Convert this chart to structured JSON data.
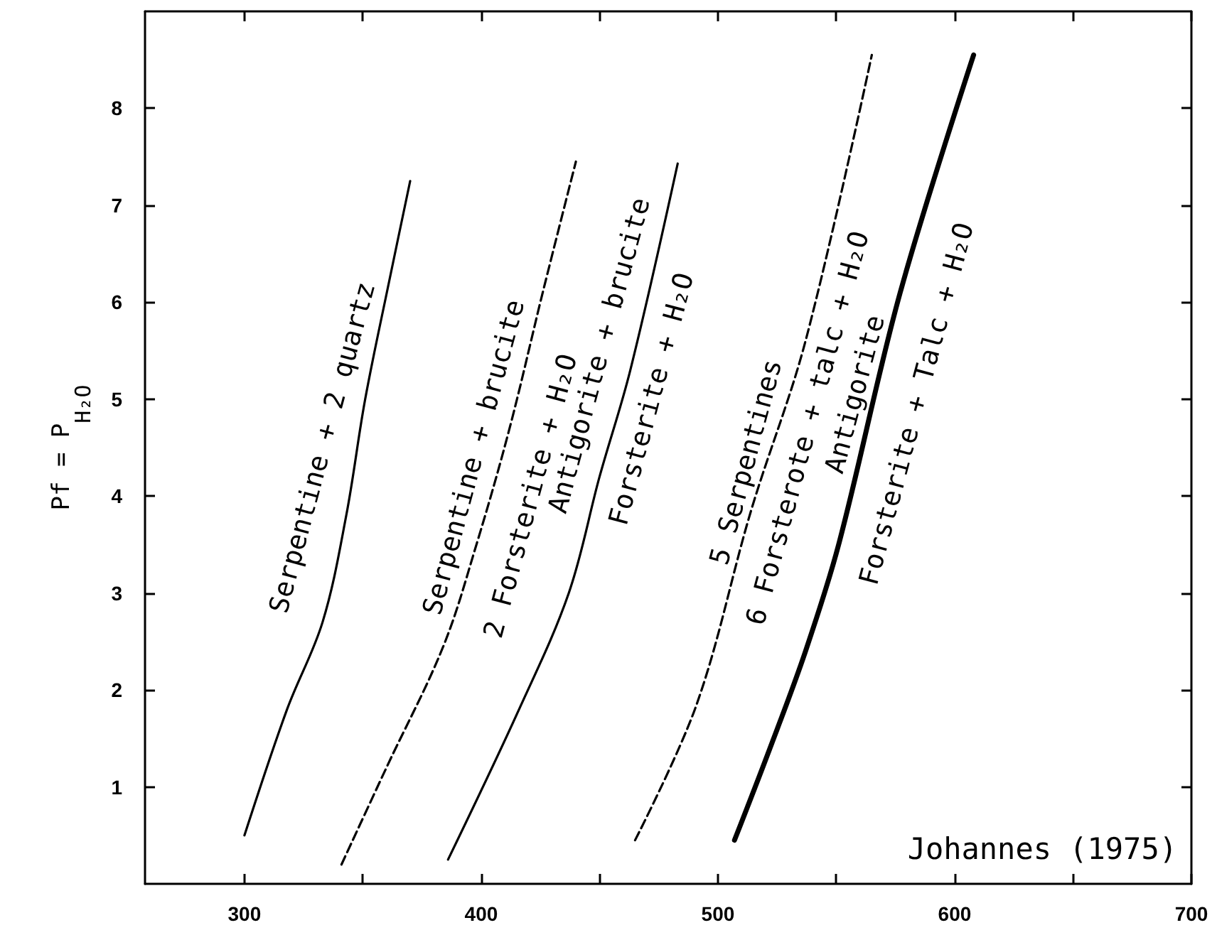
{
  "chart_data": {
    "type": "line",
    "ylabel": "Pf = P$_{H₂O}$",
    "xlim": [
      258,
      700
    ],
    "xticks": [
      300,
      {
        "value": 350,
        "label": null
      },
      400,
      {
        "value": 450,
        "label": null
      },
      500,
      {
        "value": 550,
        "label": null
      },
      600,
      {
        "value": 650,
        "label": null
      },
      700
    ],
    "ylim": [
      0,
      9
    ],
    "yticks": [
      1,
      2,
      3,
      4,
      5,
      6,
      7,
      8
    ],
    "grid": false,
    "marker": "none",
    "series": [
      {
        "color": "#000000",
        "line_style": "solid",
        "x": [
          300,
          318,
          333,
          343,
          351,
          361,
          370
        ],
        "values": [
          0.5,
          1.8,
          2.7,
          3.8,
          5.0,
          6.2,
          7.25
        ]
      },
      {
        "color": "#000000",
        "line_style": "dashed",
        "x": [
          341,
          360,
          384,
          398,
          412,
          426,
          440
        ],
        "values": [
          0.2,
          1.2,
          2.45,
          3.5,
          4.7,
          6.1,
          7.45
        ]
      },
      {
        "color": "#000000",
        "line_style": "solid",
        "x": [
          386,
          416,
          437,
          450,
          463,
          483
        ],
        "values": [
          0.25,
          1.8,
          3.0,
          4.2,
          5.3,
          7.43
        ]
      },
      {
        "color": "#000000",
        "line_style": "dashed",
        "x": [
          465,
          491,
          514,
          537,
          565
        ],
        "values": [
          0.45,
          1.85,
          3.85,
          5.6,
          8.55
        ]
      },
      {
        "color": "#000000",
        "line_style": "solid",
        "x": [
          507,
          522,
          537,
          551,
          577,
          608
        ],
        "values": [
          0.45,
          1.4,
          2.4,
          3.5,
          6.1,
          8.55
        ]
      }
    ],
    "annotations": [
      "Serpentine + 2 quartz",
      "Serpentine + brucite",
      "2 Forsterite + H₂O",
      "Antigorite + brucite",
      "Forsterite + H₂O",
      "5 Serpentines",
      "6 Forsterote + talc + H₂O",
      "Antigorite",
      "Forsterite + Talc + H₂O",
      "Johannes (1975)"
    ]
  }
}
